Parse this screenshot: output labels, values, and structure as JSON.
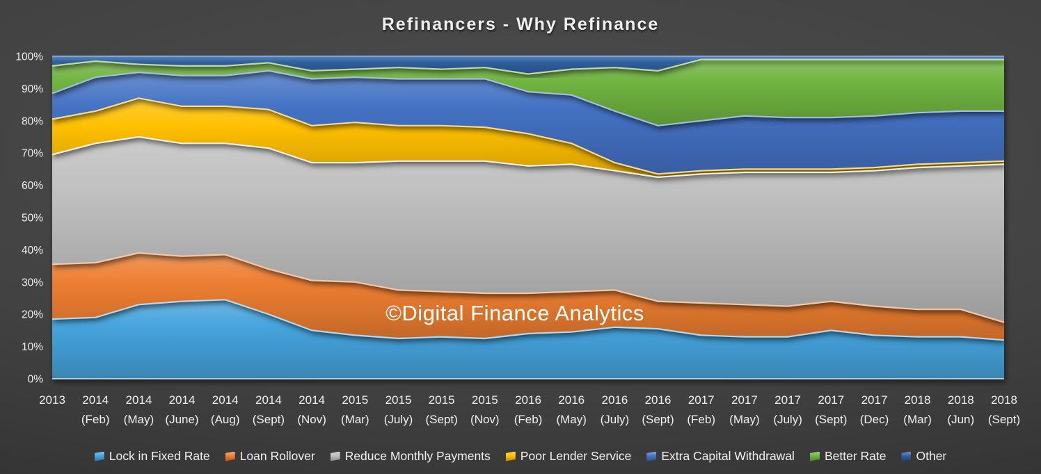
{
  "chart_data": {
    "type": "area",
    "stacked": true,
    "percent": true,
    "title": "Refinancers - Why Refinance",
    "watermark": "©Digital Finance Analytics",
    "legend_position": "bottom",
    "grid": false,
    "ylim": [
      0,
      100
    ],
    "y_ticks": [
      "100%",
      "90%",
      "80%",
      "70%",
      "60%",
      "50%",
      "40%",
      "30%",
      "20%",
      "10%",
      "0%"
    ],
    "categories": [
      "2013",
      "2014 (Feb)",
      "2014 (May)",
      "2014 (June)",
      "2014 (Aug)",
      "2014 (Sept)",
      "2014 (Nov)",
      "2015 (Mar)",
      "2015 (July)",
      "2015 (Sept)",
      "2015 (Nov)",
      "2016 (Feb)",
      "2016 (May)",
      "2016 (July)",
      "2016 (Sept)",
      "2017 (Feb)",
      "2017 (May)",
      "2017 (July)",
      "2017 (Sept)",
      "2017 (Dec)",
      "2018 (Mar)",
      "2018 (Jun)",
      "2018 (Sept)"
    ],
    "series": [
      {
        "name": "Lock in Fixed Rate",
        "color": "#45A3DD",
        "highlight": "#B6DFF6",
        "values": [
          18.5,
          19,
          23,
          24,
          24.5,
          20,
          15,
          13.5,
          12.5,
          13,
          12.5,
          14,
          14.5,
          16,
          15.5,
          13.5,
          13,
          13,
          15,
          13.5,
          13,
          13,
          12
        ]
      },
      {
        "name": "Loan Rollover",
        "color": "#ED7D31",
        "highlight": "#F9CCA8",
        "values": [
          17,
          17,
          16,
          14,
          14,
          14,
          15.5,
          16.5,
          15,
          14,
          14,
          12.5,
          12.5,
          11.5,
          8.5,
          10,
          10,
          9.5,
          9,
          9,
          8.5,
          8.5,
          5.5
        ]
      },
      {
        "name": "Reduce Monthly Payments",
        "color": "#BDBDBD",
        "highlight": "#F4F4F4",
        "values": [
          34,
          37,
          36,
          35,
          34.5,
          37.5,
          36.5,
          37,
          40,
          40.5,
          41,
          39.5,
          39.5,
          37,
          38.5,
          40,
          41,
          41.5,
          40,
          42,
          44,
          44.5,
          49
        ]
      },
      {
        "name": "Poor Lender Service",
        "color": "#FFC000",
        "highlight": "#FFE38F",
        "values": [
          11,
          10,
          12,
          11.5,
          11.5,
          12,
          11.5,
          12.5,
          11,
          11,
          10.5,
          10,
          6.5,
          2.5,
          1,
          1,
          1,
          1,
          1,
          1,
          1,
          1,
          1
        ]
      },
      {
        "name": "Extra Capital Withdrawal",
        "color": "#4472C4",
        "highlight": "#A9C2EA",
        "values": [
          8,
          10.5,
          8,
          9.5,
          9.5,
          12,
          14.5,
          14,
          14.5,
          14.5,
          15,
          13,
          15,
          16,
          15,
          15.5,
          16.5,
          16,
          16,
          16,
          16,
          16,
          15.5
        ]
      },
      {
        "name": "Better Rate",
        "color": "#6FB33F",
        "highlight": "#C4E3A8",
        "values": [
          8.5,
          5,
          2.5,
          3,
          3,
          2.5,
          2.5,
          2.5,
          3.5,
          3,
          3.5,
          5.5,
          8,
          13.5,
          17,
          19,
          17.5,
          18,
          18,
          17.5,
          16.5,
          16,
          16
        ]
      },
      {
        "name": "Other",
        "color": "#2E5E9E",
        "highlight": "#7FA8D9",
        "values": [
          3,
          1.5,
          2.5,
          3,
          3,
          2,
          4.5,
          4,
          3.5,
          4,
          3.5,
          5.5,
          4,
          3.5,
          4.5,
          1,
          1,
          1,
          1,
          1,
          1,
          1,
          1
        ]
      }
    ]
  }
}
